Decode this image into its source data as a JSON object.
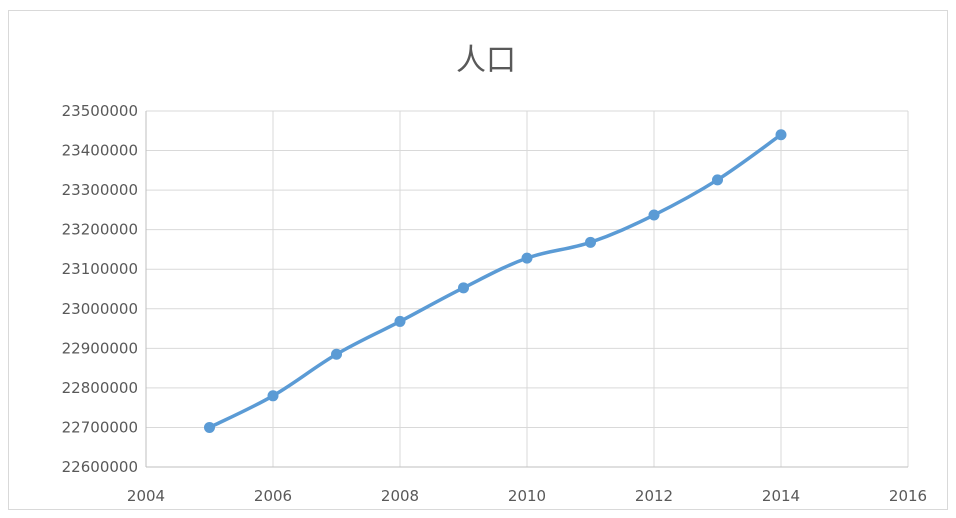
{
  "chart_data": {
    "type": "scatter",
    "title": "人口",
    "xlabel": "",
    "ylabel": "",
    "xlim": [
      2004,
      2016
    ],
    "ylim": [
      22600000,
      23500000
    ],
    "x_ticks": [
      "2004",
      "2006",
      "2008",
      "2010",
      "2012",
      "2014",
      "2016"
    ],
    "y_ticks": [
      "22600000",
      "22700000",
      "22800000",
      "22900000",
      "23000000",
      "23100000",
      "23200000",
      "23300000",
      "23400000",
      "23500000"
    ],
    "grid": true,
    "legend": "none",
    "series": [
      {
        "color": "#5b9bd5",
        "smooth_line": true,
        "x": [
          2005,
          2006,
          2007,
          2008,
          2009,
          2010,
          2011,
          2012,
          2013,
          2014
        ],
        "y": [
          22700000,
          22780000,
          22885000,
          22968000,
          23053000,
          23128000,
          23168000,
          23237000,
          23326000,
          23440000
        ]
      }
    ]
  }
}
